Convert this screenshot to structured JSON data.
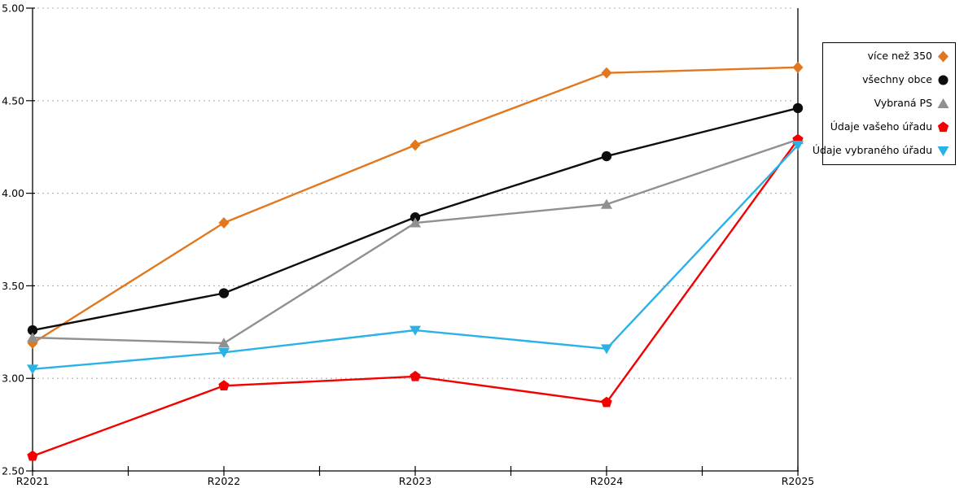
{
  "chart_data": {
    "type": "line",
    "title": "",
    "xlabel": "",
    "ylabel": "",
    "categories": [
      "R2021",
      "R2022",
      "R2023",
      "R2024",
      "R2025"
    ],
    "ylim": [
      2.5,
      5.0
    ],
    "ytick_step": 0.5,
    "ytick_labels": [
      "2.50",
      "3.00",
      "3.50",
      "4.00",
      "4.50",
      "5.00"
    ],
    "grid": "horizontal-dotted",
    "grid_color": "#b3b3b3",
    "axis_color": "#000000",
    "legend_position": "right-outside",
    "legend_border_color": "#000000",
    "right_border_at_last_category": true,
    "series": [
      {
        "name": "více než 350",
        "marker": "diamond",
        "color": "#e2771d",
        "values": [
          3.19,
          3.84,
          4.26,
          4.65,
          4.68
        ]
      },
      {
        "name": "všechny obce",
        "marker": "circle",
        "color": "#0d0d0d",
        "values": [
          3.26,
          3.46,
          3.87,
          4.2,
          4.46
        ]
      },
      {
        "name": "Vybraná PS",
        "marker": "triangle-up",
        "color": "#909090",
        "values": [
          3.22,
          3.19,
          3.84,
          3.94,
          4.29
        ]
      },
      {
        "name": "Údaje vašeho úřadu",
        "marker": "pentagon",
        "color": "#f50000",
        "values": [
          2.58,
          2.96,
          3.01,
          2.87,
          4.29
        ]
      },
      {
        "name": "Údaje vybraného úřadu",
        "marker": "triangle-down",
        "color": "#2ab2e7",
        "values": [
          3.05,
          3.14,
          3.26,
          3.16,
          4.26
        ]
      }
    ]
  }
}
